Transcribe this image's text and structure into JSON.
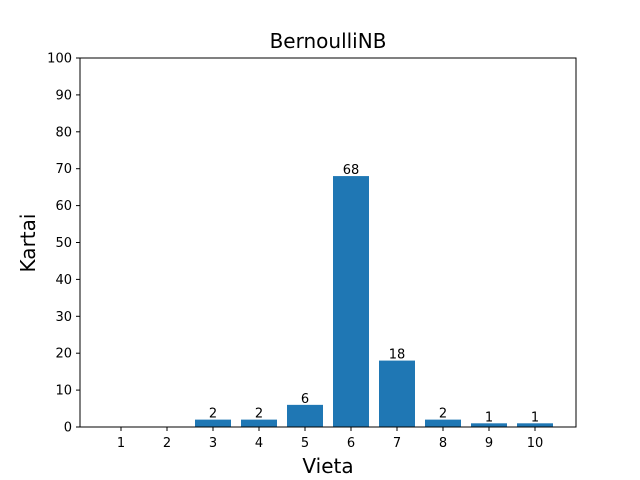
{
  "chart_data": {
    "type": "bar",
    "title": "BernoulliNB",
    "xlabel": "Vieta",
    "ylabel": "Kartai",
    "categories": [
      "1",
      "2",
      "3",
      "4",
      "5",
      "6",
      "7",
      "8",
      "9",
      "10"
    ],
    "values": [
      0,
      0,
      2,
      2,
      6,
      68,
      18,
      2,
      1,
      1
    ],
    "data_labels": [
      "",
      "",
      "2",
      "2",
      "6",
      "68",
      "18",
      "2",
      "1",
      "1"
    ],
    "ylim": [
      0,
      100
    ],
    "yticks": [
      "0",
      "10",
      "20",
      "30",
      "40",
      "50",
      "60",
      "70",
      "80",
      "90",
      "100"
    ],
    "grid": false,
    "legend": "none",
    "bar_color": "#1f77b4"
  }
}
